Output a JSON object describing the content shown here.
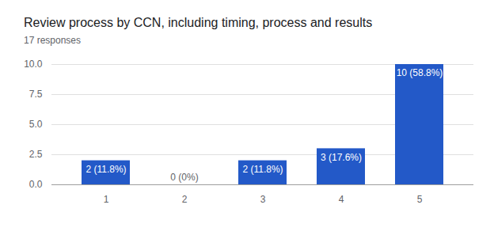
{
  "chart_data": {
    "type": "bar",
    "title": "Review process by CCN, including timing, process and results",
    "subtitle": "17 responses",
    "categories": [
      "1",
      "2",
      "3",
      "4",
      "5"
    ],
    "values": [
      2,
      0,
      2,
      3,
      10
    ],
    "value_labels": [
      "2 (11.8%)",
      "0 (0%)",
      "2 (11.8%)",
      "3 (17.6%)",
      "10 (58.8%)"
    ],
    "data_labels": true,
    "color": "#2359c8",
    "ylim": [
      0,
      10
    ],
    "yticks": [
      {
        "value": 0,
        "label": "0.0"
      },
      {
        "value": 2.5,
        "label": "2.5"
      },
      {
        "value": 5,
        "label": "5.0"
      },
      {
        "value": 7.5,
        "label": "7.5"
      },
      {
        "value": 10,
        "label": "10.0"
      }
    ],
    "grid": true
  }
}
